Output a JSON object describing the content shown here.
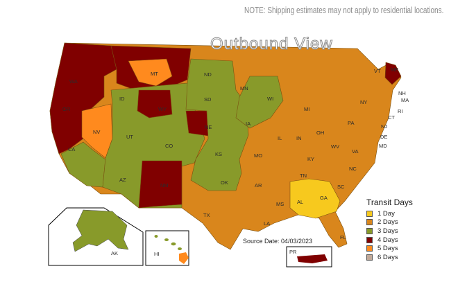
{
  "note": "NOTE: Shipping estimates may not apply to residential locations.",
  "title": "Outbound View",
  "source": "Source Date: 04/03/2023",
  "legend": {
    "title": "Transit Days",
    "items": [
      {
        "label": "1 Day",
        "color": "#f7c91e"
      },
      {
        "label": "2 Days",
        "color": "#d9861c"
      },
      {
        "label": "3 Days",
        "color": "#889a2a"
      },
      {
        "label": "4 Days",
        "color": "#800000"
      },
      {
        "label": "5 Days",
        "color": "#ff8a1e"
      },
      {
        "label": "6 Days",
        "color": "#c0a898"
      }
    ]
  },
  "states": {
    "WA": "WA",
    "OR": "OR",
    "CA": "CA",
    "NV": "NV",
    "ID": "ID",
    "MT": "MT",
    "WY": "WY",
    "UT": "UT",
    "AZ": "AZ",
    "CO": "CO",
    "NM": "NM",
    "ND": "ND",
    "SD": "SD",
    "NE": "NE",
    "KS": "KS",
    "OK": "OK",
    "TX": "TX",
    "MN": "MN",
    "IA": "IA",
    "MO": "MO",
    "AR": "AR",
    "LA": "LA",
    "WI": "WI",
    "IL": "IL",
    "MS": "MS",
    "MI": "MI",
    "IN": "IN",
    "KY": "KY",
    "TN": "TN",
    "AL": "AL",
    "OH": "OH",
    "GA": "GA",
    "FL": "FL",
    "SC": "SC",
    "NC": "NC",
    "VA": "VA",
    "WV": "WV",
    "PA": "PA",
    "NY": "NY",
    "VT": "VT",
    "ME": "ME",
    "NH": "NH",
    "MA": "MA",
    "RI": "RI",
    "CT": "CT",
    "NJ": "NJ",
    "DE": "DE",
    "MD": "MD",
    "AK": "AK",
    "HI": "HI",
    "PR": "PR"
  }
}
